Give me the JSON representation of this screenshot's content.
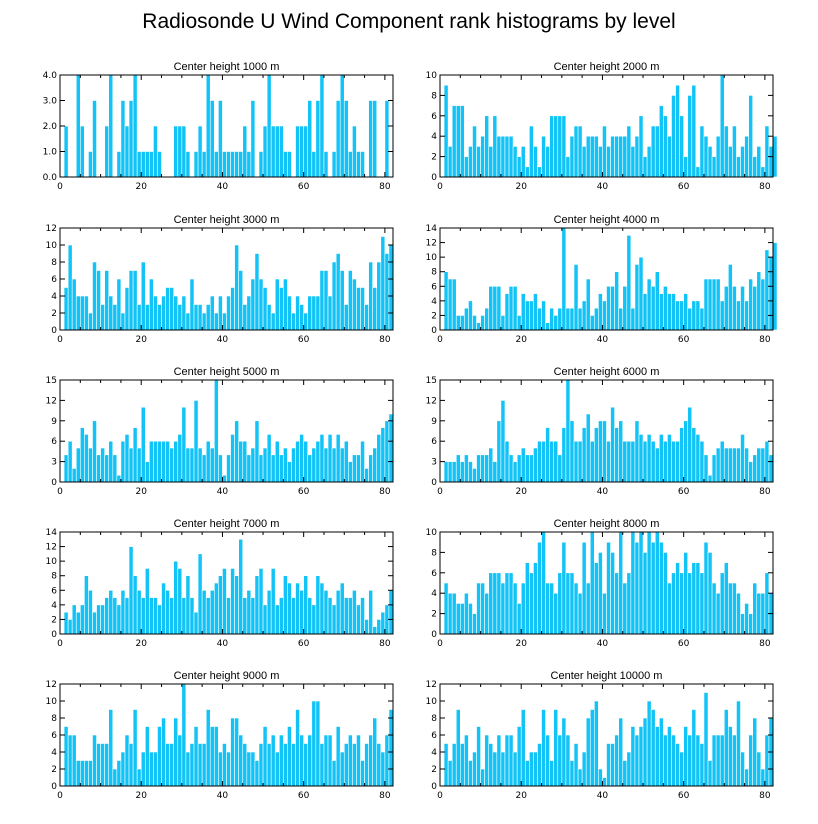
{
  "title": "Radiosonde U Wind Component rank histograms by level",
  "colors": {
    "bar": "#11c3f6",
    "frame": "#000000",
    "bar_edge": "#ffffff"
  },
  "chart_data": [
    {
      "type": "bar",
      "title": "Center height 1000 m",
      "xlim": [
        0,
        82
      ],
      "ylim": [
        0,
        4
      ],
      "x_ticks": [
        "0",
        "20",
        "40",
        "60",
        "80"
      ],
      "x_tick_values": [
        0,
        20,
        40,
        60,
        80
      ],
      "y_ticks": [
        "0.0",
        "1.0",
        "2.0",
        "3.0",
        "4.0"
      ],
      "y_tick_values": [
        0,
        1,
        2,
        3,
        4
      ],
      "values": [
        0,
        2,
        0,
        0,
        4,
        2,
        0,
        1,
        3,
        0,
        0,
        2,
        4,
        0,
        1,
        3,
        2,
        3,
        4,
        1,
        1,
        1,
        1,
        2,
        1,
        0,
        0,
        0,
        2,
        2,
        2,
        1,
        0,
        1,
        2,
        1,
        4,
        3,
        1,
        3,
        1,
        1,
        1,
        1,
        1,
        2,
        1,
        3,
        0,
        1,
        2,
        4,
        2,
        2,
        2,
        1,
        1,
        0,
        2,
        2,
        2,
        3,
        1,
        3,
        4,
        1,
        0,
        1,
        3,
        4,
        3,
        1,
        2,
        1,
        1,
        0,
        3,
        3,
        0,
        0,
        3,
        0
      ]
    },
    {
      "type": "bar",
      "title": "Center height 2000 m",
      "xlim": [
        0,
        82
      ],
      "ylim": [
        0,
        10
      ],
      "x_ticks": [
        "0",
        "20",
        "40",
        "60",
        "80"
      ],
      "x_tick_values": [
        0,
        20,
        40,
        60,
        80
      ],
      "y_ticks": [
        "0",
        "2",
        "4",
        "6",
        "8",
        "10"
      ],
      "y_tick_values": [
        0,
        2,
        4,
        6,
        8,
        10
      ],
      "values": [
        0,
        9,
        3,
        7,
        7,
        7,
        2,
        3,
        5,
        3,
        4,
        6,
        3,
        6,
        4,
        4,
        4,
        4,
        3,
        2,
        3,
        1,
        5,
        3,
        1,
        4,
        3,
        6,
        6,
        6,
        6,
        2,
        4,
        5,
        5,
        3,
        4,
        4,
        4,
        3,
        5,
        3,
        4,
        4,
        4,
        4,
        5,
        3,
        4,
        6,
        2,
        3,
        5,
        5,
        7,
        6,
        4,
        8,
        9,
        6,
        2,
        8,
        9,
        1,
        5,
        4,
        3,
        2,
        4,
        10,
        5,
        3,
        5,
        2,
        3,
        4,
        8,
        2,
        3,
        1,
        5,
        3,
        4
      ]
    },
    {
      "type": "bar",
      "title": "Center height 3000 m",
      "xlim": [
        0,
        82
      ],
      "ylim": [
        0,
        12
      ],
      "x_ticks": [
        "0",
        "20",
        "40",
        "60",
        "80"
      ],
      "x_tick_values": [
        0,
        20,
        40,
        60,
        80
      ],
      "y_ticks": [
        "0",
        "2",
        "4",
        "6",
        "8",
        "10",
        "12"
      ],
      "y_tick_values": [
        0,
        2,
        4,
        6,
        8,
        10,
        12
      ],
      "values": [
        0,
        5,
        10,
        6,
        4,
        4,
        4,
        2,
        8,
        7,
        3,
        7,
        4,
        3,
        6,
        2,
        5,
        7,
        7,
        3,
        8,
        3,
        6,
        4,
        3,
        4,
        5,
        5,
        4,
        3,
        4,
        2,
        6,
        3,
        3,
        2,
        3,
        4,
        2,
        4,
        2,
        4,
        5,
        10,
        7,
        3,
        4,
        6,
        9,
        6,
        5,
        3,
        2,
        6,
        5,
        6,
        4,
        2,
        4,
        3,
        2,
        4,
        4,
        4,
        7,
        7,
        4,
        8,
        9,
        7,
        3,
        7,
        6,
        5,
        5,
        3,
        8,
        5,
        8,
        11,
        9,
        10
      ]
    },
    {
      "type": "bar",
      "title": "Center height 4000 m",
      "xlim": [
        0,
        82
      ],
      "ylim": [
        0,
        14
      ],
      "x_ticks": [
        "0",
        "20",
        "40",
        "60",
        "80"
      ],
      "x_tick_values": [
        0,
        20,
        40,
        60,
        80
      ],
      "y_ticks": [
        "0",
        "2",
        "4",
        "6",
        "8",
        "10",
        "12",
        "14"
      ],
      "y_tick_values": [
        0,
        2,
        4,
        6,
        8,
        10,
        12,
        14
      ],
      "values": [
        0,
        8,
        7,
        7,
        2,
        2,
        3,
        4,
        2,
        1,
        2,
        3,
        6,
        6,
        6,
        2,
        5,
        6,
        6,
        2,
        5,
        4,
        4,
        5,
        3,
        4,
        1,
        3,
        2,
        3,
        14,
        3,
        3,
        9,
        3,
        4,
        7,
        2,
        3,
        5,
        4,
        6,
        6,
        8,
        3,
        6,
        13,
        3,
        9,
        10,
        5,
        7,
        6,
        8,
        5,
        6,
        5,
        5,
        4,
        4,
        5,
        3,
        4,
        4,
        3,
        7,
        7,
        7,
        7,
        4,
        6,
        9,
        6,
        4,
        6,
        4,
        7,
        6,
        8,
        7,
        11,
        10,
        12
      ]
    },
    {
      "type": "bar",
      "title": "Center height 5000 m",
      "xlim": [
        0,
        82
      ],
      "ylim": [
        0,
        15
      ],
      "x_ticks": [
        "0",
        "20",
        "40",
        "60",
        "80"
      ],
      "x_tick_values": [
        0,
        20,
        40,
        60,
        80
      ],
      "y_ticks": [
        "0",
        "3",
        "6",
        "9",
        "12",
        "15"
      ],
      "y_tick_values": [
        0,
        3,
        6,
        9,
        12,
        15
      ],
      "values": [
        0,
        4,
        6,
        2,
        5,
        8,
        7,
        5,
        9,
        4,
        5,
        4,
        6,
        4,
        1,
        6,
        7,
        5,
        8,
        5,
        11,
        3,
        6,
        6,
        6,
        6,
        6,
        5,
        6,
        7,
        11,
        5,
        5,
        12,
        5,
        4,
        6,
        5,
        15,
        4,
        1,
        4,
        7,
        9,
        6,
        6,
        4,
        5,
        9,
        4,
        5,
        7,
        4,
        6,
        4,
        5,
        3,
        5,
        6,
        7,
        6,
        4,
        5,
        6,
        7,
        5,
        7,
        5,
        7,
        5,
        6,
        3,
        4,
        4,
        6,
        2,
        4,
        5,
        7,
        8,
        9,
        10
      ]
    },
    {
      "type": "bar",
      "title": "Center height 6000 m",
      "xlim": [
        0,
        82
      ],
      "ylim": [
        0,
        15
      ],
      "x_ticks": [
        "0",
        "20",
        "40",
        "60",
        "80"
      ],
      "x_tick_values": [
        0,
        20,
        40,
        60,
        80
      ],
      "y_ticks": [
        "0",
        "3",
        "6",
        "9",
        "12",
        "15"
      ],
      "y_tick_values": [
        0,
        3,
        6,
        9,
        12,
        15
      ],
      "values": [
        0,
        3,
        3,
        3,
        4,
        3,
        4,
        3,
        2,
        4,
        4,
        4,
        5,
        3,
        9,
        12,
        6,
        4,
        3,
        4,
        5,
        4,
        4,
        5,
        6,
        6,
        8,
        6,
        6,
        4,
        8,
        15,
        9,
        6,
        6,
        8,
        10,
        6,
        8,
        9,
        9,
        6,
        11,
        8,
        9,
        6,
        6,
        6,
        9,
        7,
        6,
        7,
        6,
        5,
        7,
        6,
        7,
        6,
        6,
        8,
        9,
        11,
        8,
        7,
        6,
        4,
        1,
        4,
        5,
        6,
        5,
        5,
        5,
        5,
        7,
        5,
        3,
        4,
        5,
        5,
        6,
        4
      ]
    },
    {
      "type": "bar",
      "title": "Center height 7000 m",
      "xlim": [
        0,
        82
      ],
      "ylim": [
        0,
        14
      ],
      "x_ticks": [
        "0",
        "20",
        "40",
        "60",
        "80"
      ],
      "x_tick_values": [
        0,
        20,
        40,
        60,
        80
      ],
      "y_ticks": [
        "0",
        "2",
        "4",
        "6",
        "8",
        "10",
        "12",
        "14"
      ],
      "y_tick_values": [
        0,
        2,
        4,
        6,
        8,
        10,
        12,
        14
      ],
      "values": [
        0,
        3,
        2,
        4,
        3,
        4,
        8,
        6,
        3,
        4,
        4,
        5,
        6,
        5,
        4,
        6,
        5,
        12,
        8,
        6,
        5,
        9,
        5,
        5,
        4,
        7,
        6,
        5,
        10,
        9,
        5,
        8,
        5,
        3,
        11,
        6,
        5,
        6,
        7,
        8,
        9,
        5,
        9,
        8,
        13,
        5,
        6,
        5,
        8,
        9,
        4,
        6,
        9,
        4,
        5,
        8,
        7,
        5,
        7,
        6,
        8,
        5,
        4,
        8,
        7,
        6,
        5,
        4,
        6,
        7,
        5,
        5,
        6,
        4,
        5,
        2,
        6,
        1,
        2,
        3,
        4,
        6
      ]
    },
    {
      "type": "bar",
      "title": "Center height 8000 m",
      "xlim": [
        0,
        82
      ],
      "ylim": [
        0,
        10
      ],
      "x_ticks": [
        "0",
        "20",
        "40",
        "60",
        "80"
      ],
      "x_tick_values": [
        0,
        20,
        40,
        60,
        80
      ],
      "y_ticks": [
        "0",
        "2",
        "4",
        "6",
        "8",
        "10"
      ],
      "y_tick_values": [
        0,
        2,
        4,
        6,
        8,
        10
      ],
      "values": [
        0,
        5,
        4,
        4,
        3,
        3,
        4,
        3,
        2,
        5,
        5,
        4,
        6,
        6,
        6,
        5,
        6,
        6,
        5,
        3,
        5,
        7,
        6,
        7,
        9,
        10,
        5,
        5,
        4,
        6,
        9,
        6,
        6,
        5,
        4,
        9,
        5,
        10,
        7,
        8,
        4,
        9,
        8,
        6,
        10,
        5,
        6,
        10,
        9,
        10,
        8,
        10,
        9,
        10,
        9,
        8,
        5,
        6,
        7,
        6,
        8,
        6,
        7,
        7,
        6,
        9,
        8,
        5,
        4,
        6,
        7,
        5,
        5,
        4,
        2,
        3,
        2,
        5,
        4,
        4,
        6,
        4
      ]
    },
    {
      "type": "bar",
      "title": "Center height 9000 m",
      "xlim": [
        0,
        82
      ],
      "ylim": [
        0,
        12
      ],
      "x_ticks": [
        "0",
        "20",
        "40",
        "60",
        "80"
      ],
      "x_tick_values": [
        0,
        20,
        40,
        60,
        80
      ],
      "y_ticks": [
        "0",
        "2",
        "4",
        "6",
        "8",
        "10",
        "12"
      ],
      "y_tick_values": [
        0,
        2,
        4,
        6,
        8,
        10,
        12
      ],
      "values": [
        0,
        7,
        6,
        6,
        3,
        3,
        3,
        3,
        6,
        5,
        5,
        5,
        9,
        2,
        3,
        4,
        6,
        5,
        9,
        2,
        4,
        7,
        4,
        4,
        7,
        8,
        5,
        5,
        8,
        6,
        12,
        4,
        5,
        7,
        5,
        5,
        9,
        7,
        7,
        4,
        5,
        4,
        8,
        8,
        6,
        5,
        4,
        4,
        3,
        5,
        7,
        5,
        6,
        4,
        6,
        5,
        7,
        5,
        9,
        6,
        5,
        6,
        10,
        10,
        5,
        6,
        6,
        3,
        7,
        4,
        5,
        6,
        5,
        6,
        3,
        5,
        6,
        8,
        5,
        4,
        6,
        9
      ]
    },
    {
      "type": "bar",
      "title": "Center height 10000 m",
      "xlim": [
        0,
        82
      ],
      "ylim": [
        0,
        12
      ],
      "x_ticks": [
        "0",
        "20",
        "40",
        "60",
        "80"
      ],
      "x_tick_values": [
        0,
        20,
        40,
        60,
        80
      ],
      "y_ticks": [
        "0",
        "2",
        "4",
        "6",
        "8",
        "10",
        "12"
      ],
      "y_tick_values": [
        0,
        2,
        4,
        6,
        8,
        10,
        12
      ],
      "values": [
        0,
        5,
        3,
        5,
        9,
        5,
        6,
        3,
        4,
        7,
        2,
        6,
        5,
        4,
        6,
        4,
        6,
        6,
        4,
        7,
        9,
        3,
        4,
        4,
        5,
        9,
        6,
        3,
        9,
        6,
        8,
        6,
        3,
        5,
        2,
        4,
        8,
        9,
        10,
        2,
        1,
        5,
        5,
        6,
        8,
        3,
        4,
        7,
        6,
        7,
        8,
        10,
        9,
        7,
        8,
        6,
        7,
        6,
        5,
        4,
        7,
        6,
        9,
        6,
        5,
        11,
        3,
        6,
        6,
        6,
        9,
        7,
        6,
        10,
        4,
        2,
        6,
        8,
        4,
        2,
        6,
        8
      ]
    }
  ]
}
